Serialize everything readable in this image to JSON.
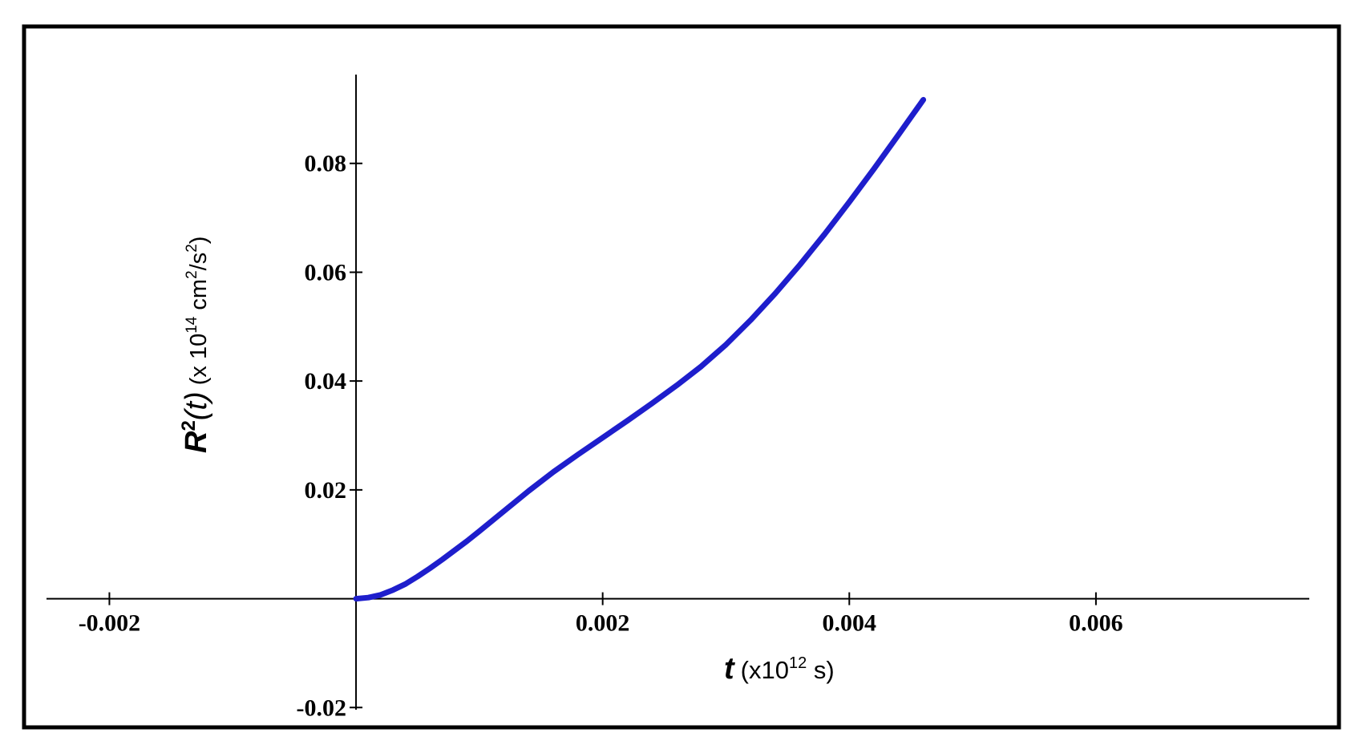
{
  "chart_data": {
    "type": "line",
    "xlabel": {
      "symbol": "t",
      "unit_prefix": "(x10",
      "unit_exp": "12",
      "unit_suffix": " s)"
    },
    "ylabel": {
      "symbol": "R",
      "symbol_exp": "2",
      "arg": "(t)",
      "unit_prefix": " (x 10",
      "unit_exp": "14",
      "unit_mid": " cm",
      "unit_exp2": "2",
      "unit_suffix": "/s",
      "unit_exp3": "2",
      "unit_close": ")"
    },
    "xlim": [
      -0.00251,
      0.00773
    ],
    "ylim": [
      -0.0204,
      0.0975
    ],
    "x_ticks": [
      {
        "value": -0.002,
        "label": "-0.002"
      },
      {
        "value": 0.002,
        "label": "0.002"
      },
      {
        "value": 0.004,
        "label": "0.004"
      },
      {
        "value": 0.006,
        "label": "0.006"
      }
    ],
    "y_ticks": [
      {
        "value": 0.02,
        "label": "0.02"
      },
      {
        "value": 0.04,
        "label": "0.04"
      },
      {
        "value": 0.06,
        "label": "0.06"
      },
      {
        "value": 0.08,
        "label": "0.08"
      },
      {
        "value": -0.02,
        "label": "-0.02"
      }
    ],
    "grid": false,
    "series": [
      {
        "color": "#1e1ecc",
        "x": [
          0,
          0.0001,
          0.0002,
          0.0003,
          0.0004,
          0.0005,
          0.0006,
          0.0007,
          0.0008,
          0.0009,
          0.001,
          0.0012,
          0.0014,
          0.0016,
          0.0018,
          0.002,
          0.0022,
          0.0024,
          0.0026,
          0.0028,
          0.003,
          0.0032,
          0.0034,
          0.0036,
          0.0038,
          0.004,
          0.0042,
          0.0044,
          0.0046
        ],
        "y": [
          0,
          0.0002,
          0.0007,
          0.0016,
          0.0027,
          0.0041,
          0.0056,
          0.0072,
          0.0089,
          0.0106,
          0.0124,
          0.0161,
          0.0198,
          0.0233,
          0.0265,
          0.0296,
          0.0327,
          0.0359,
          0.0392,
          0.0427,
          0.0467,
          0.0512,
          0.0561,
          0.0614,
          0.067,
          0.0729,
          0.079,
          0.0853,
          0.0917
        ]
      }
    ]
  }
}
